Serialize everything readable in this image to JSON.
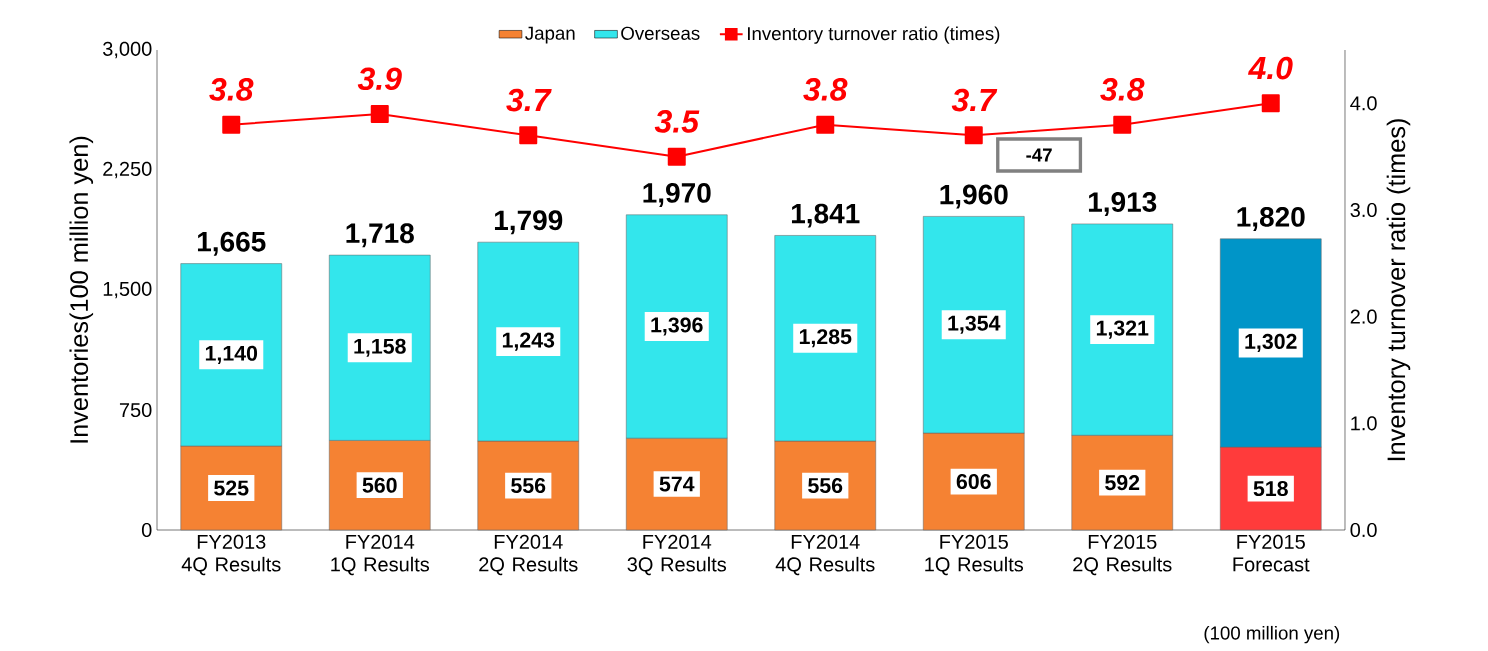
{
  "chart_data": {
    "type": "bar",
    "stacked": true,
    "categories": [
      "FY2013 4Q Results",
      "FY2014 1Q Results",
      "FY2014 2Q Results",
      "FY2014 3Q Results",
      "FY2014 4Q Results",
      "FY2015 1Q Results",
      "FY2015 2Q Results",
      "FY2015 Forecast"
    ],
    "series": [
      {
        "name": "Japan",
        "color": "#f58233",
        "colors": [
          "#f58233",
          "#f58233",
          "#f58233",
          "#f58233",
          "#f58233",
          "#f58233",
          "#f58233",
          "#ff3b3b"
        ],
        "values": [
          525,
          560,
          556,
          574,
          556,
          606,
          592,
          518
        ],
        "value_labels": [
          "525",
          "560",
          "556",
          "574",
          "556",
          "606",
          "592",
          "518"
        ]
      },
      {
        "name": "Overseas",
        "color": "#33e6ec",
        "colors": [
          "#33e6ec",
          "#33e6ec",
          "#33e6ec",
          "#33e6ec",
          "#33e6ec",
          "#33e6ec",
          "#33e6ec",
          "#0095c8"
        ],
        "values": [
          1140,
          1158,
          1243,
          1396,
          1285,
          1354,
          1321,
          1302
        ],
        "value_labels": [
          "1,140",
          "1,158",
          "1,243",
          "1,396",
          "1,285",
          "1,354",
          "1,321",
          "1,302"
        ]
      },
      {
        "name": "Inventory turnover ratio (times)",
        "type": "line",
        "axis": "y2",
        "color": "#ff0000",
        "values": [
          3.8,
          3.9,
          3.7,
          3.5,
          3.8,
          3.7,
          3.8,
          4.0
        ],
        "value_labels": [
          "3.8",
          "3.9",
          "3.7",
          "3.5",
          "3.8",
          "3.7",
          "3.8",
          "4.0"
        ]
      }
    ],
    "totals": [
      "1,665",
      "1,718",
      "1,799",
      "1,970",
      "1,841",
      "1,960",
      "1,913",
      "1,820"
    ],
    "ylabel": "Inventories(100 million yen)",
    "y2label": "Inventory turnover ratio (times)",
    "ylim": [
      0,
      3000
    ],
    "yticks": [
      0,
      {
        "value": 750,
        "label": "750"
      },
      {
        "value": 1500,
        "label": "1,500"
      },
      {
        "value": 2250,
        "label": "2,250"
      },
      {
        "value": 3000,
        "label": "3,000"
      }
    ],
    "y2lim": [
      0,
      4.5
    ],
    "y2ticks": [
      {
        "value": 0,
        "label": "0.0"
      },
      {
        "value": 1,
        "label": "1.0"
      },
      {
        "value": 2,
        "label": "2.0"
      },
      {
        "value": 3,
        "label": "3.0"
      },
      {
        "value": 4,
        "label": "4.0"
      }
    ],
    "marker": "square",
    "line_style": "solid",
    "legend": "top",
    "annotations": [
      "-47",
      "(100 million yen)"
    ]
  }
}
